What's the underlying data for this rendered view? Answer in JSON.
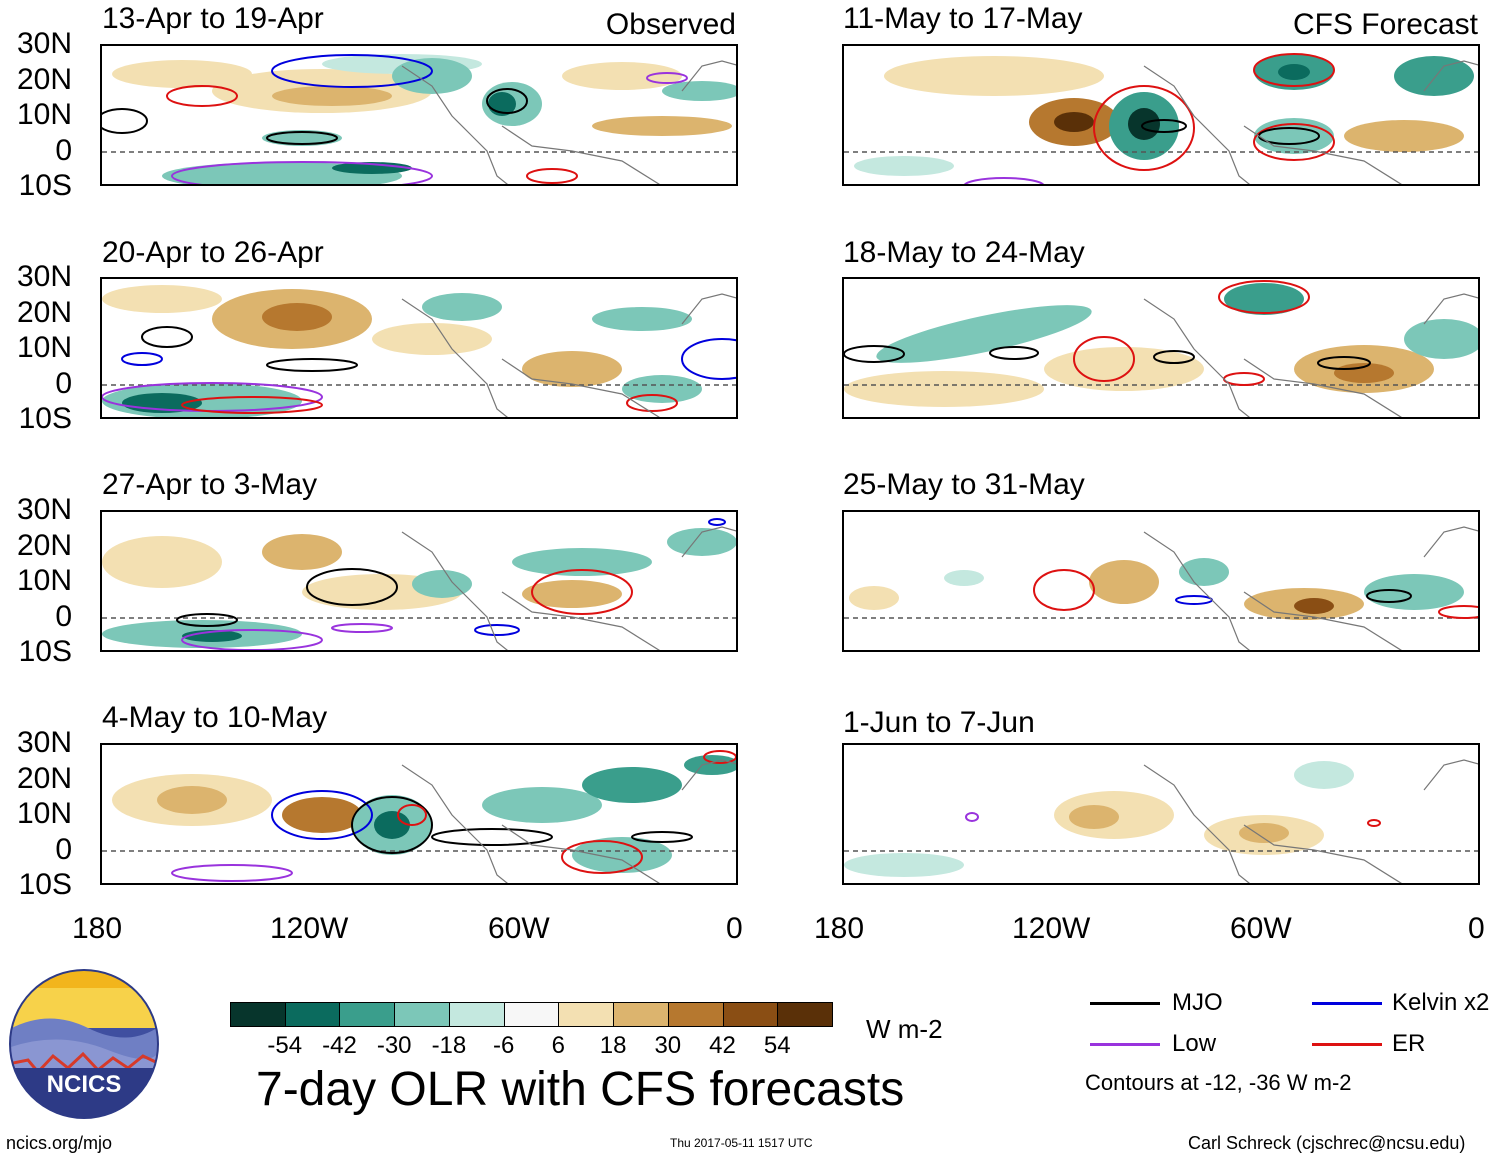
{
  "panels": [
    {
      "title": "13-Apr to 19-Apr",
      "tag": "Observed"
    },
    {
      "title": "11-May to 17-May",
      "tag": "CFS Forecast"
    },
    {
      "title": "20-Apr to 26-Apr",
      "tag": ""
    },
    {
      "title": "18-May to 24-May",
      "tag": ""
    },
    {
      "title": "27-Apr to 3-May",
      "tag": ""
    },
    {
      "title": "25-May to 31-May",
      "tag": ""
    },
    {
      "title": "4-May to 10-May",
      "tag": ""
    },
    {
      "title": "1-Jun to 7-Jun",
      "tag": ""
    }
  ],
  "lat_labels": [
    "30N",
    "20N",
    "10N",
    "0",
    "10S"
  ],
  "lon_labels": [
    "180",
    "120W",
    "60W",
    "0"
  ],
  "colorbar": {
    "ticks": [
      "-54",
      "-42",
      "-30",
      "-18",
      "-6",
      "6",
      "18",
      "30",
      "42",
      "54"
    ],
    "colors": [
      "#07352c",
      "#0b6b5e",
      "#3a9e8c",
      "#7cc7b8",
      "#c4e8df",
      "#f7f7f7",
      "#f3e0b2",
      "#dcb46e",
      "#b6782f",
      "#8a4e14",
      "#5a3008"
    ],
    "units": "W m-2"
  },
  "title": "7-day OLR with CFS forecasts",
  "logo": {
    "text": "NCICS"
  },
  "legend": {
    "items": [
      {
        "label": "MJO",
        "color": "#000000"
      },
      {
        "label": "Kelvin x2",
        "color": "#0000dd"
      },
      {
        "label": "Low",
        "color": "#9933dd"
      },
      {
        "label": "ER",
        "color": "#dd1111"
      }
    ],
    "note": "Contours at -12, -36 W m-2"
  },
  "footer": {
    "url": "ncics.org/mjo",
    "timestamp": "Thu 2017-05-11 1517 UTC",
    "credit": "Carl Schreck (cjschrec@ncsu.edu)"
  }
}
